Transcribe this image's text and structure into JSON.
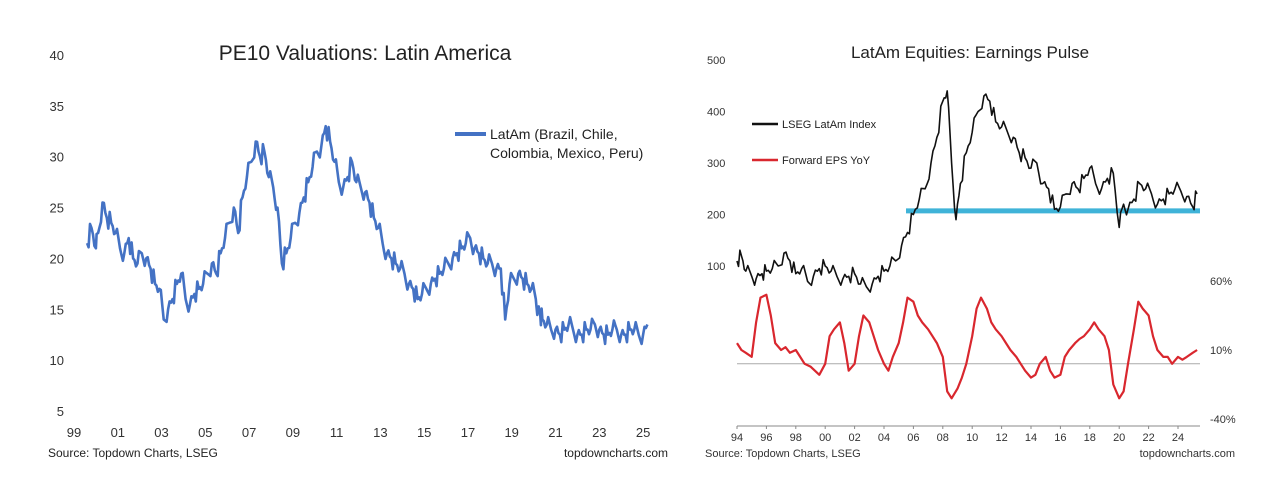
{
  "colors": {
    "blue": "#4472c4",
    "black": "#111111",
    "red": "#d9272e",
    "cyan": "#3fb3d8",
    "zero": "#aaaaaa"
  },
  "chart_data": [
    {
      "type": "line",
      "title": "PE10 Valuations: Latin America",
      "source": "Source: Topdown Charts, LSEG",
      "watermark": "topdowncharts.com",
      "ylim": [
        5,
        40
      ],
      "xlim": [
        1999,
        2025.5
      ],
      "y_ticks": [
        "5",
        "10",
        "15",
        "20",
        "25",
        "30",
        "35",
        "40"
      ],
      "x_ticks": [
        "99",
        "01",
        "03",
        "05",
        "07",
        "09",
        "11",
        "13",
        "15",
        "17",
        "19",
        "21",
        "23",
        "25"
      ],
      "legend_position": "top-right",
      "series": [
        {
          "name": "LatAm (Brazil, Chile, Colombia, Mexico, Peru)",
          "legend_lines": [
            "LatAm (Brazil, Chile,",
            "Colombia, Mexico, Peru)"
          ],
          "color": "#4472c4",
          "x": [
            1999.6,
            1999.8,
            2000.0,
            2000.1,
            2000.3,
            2000.5,
            2000.7,
            2000.9,
            2001.1,
            2001.3,
            2001.5,
            2001.7,
            2001.9,
            2002.1,
            2002.3,
            2002.5,
            2002.7,
            2002.9,
            2003.1,
            2003.3,
            2003.5,
            2003.7,
            2003.9,
            2004.1,
            2004.3,
            2004.5,
            2004.7,
            2004.9,
            2005.1,
            2005.3,
            2005.5,
            2005.7,
            2005.9,
            2006.1,
            2006.3,
            2006.5,
            2006.7,
            2006.9,
            2007.1,
            2007.3,
            2007.5,
            2007.7,
            2007.9,
            2008.1,
            2008.3,
            2008.5,
            2008.7,
            2008.9,
            2009.1,
            2009.3,
            2009.5,
            2009.7,
            2009.9,
            2010.1,
            2010.3,
            2010.5,
            2010.7,
            2010.9,
            2011.1,
            2011.3,
            2011.5,
            2011.7,
            2011.9,
            2012.1,
            2012.3,
            2012.5,
            2012.7,
            2012.9,
            2013.1,
            2013.3,
            2013.5,
            2013.7,
            2013.9,
            2014.1,
            2014.3,
            2014.5,
            2014.7,
            2014.9,
            2015.1,
            2015.3,
            2015.5,
            2015.7,
            2015.9,
            2016.1,
            2016.3,
            2016.5,
            2016.7,
            2016.9,
            2017.1,
            2017.3,
            2017.5,
            2017.7,
            2017.9,
            2018.1,
            2018.3,
            2018.5,
            2018.7,
            2018.9,
            2019.1,
            2019.3,
            2019.5,
            2019.7,
            2019.9,
            2020.1,
            2020.2,
            2020.3,
            2020.4,
            2020.6,
            2020.8,
            2021.0,
            2021.2,
            2021.4,
            2021.6,
            2021.8,
            2022.0,
            2022.2,
            2022.4,
            2022.6,
            2022.8,
            2023.0,
            2023.2,
            2023.4,
            2023.6,
            2023.8,
            2024.0,
            2024.2,
            2024.4,
            2024.6,
            2024.8,
            2025.0,
            2025.2
          ],
          "values": [
            21.5,
            23.0,
            21.0,
            22.5,
            25.5,
            24.0,
            23.5,
            22.5,
            21.0,
            20.5,
            22.0,
            20.0,
            19.5,
            20.5,
            20.0,
            19.0,
            17.5,
            17.0,
            14.0,
            15.0,
            16.0,
            17.5,
            18.5,
            16.0,
            15.5,
            16.5,
            17.0,
            17.5,
            18.5,
            19.5,
            18.5,
            20.5,
            22.0,
            23.5,
            25.0,
            22.5,
            26.0,
            28.0,
            29.5,
            31.5,
            30.0,
            30.5,
            28.0,
            27.0,
            25.0,
            19.5,
            20.5,
            22.0,
            23.5,
            24.5,
            26.0,
            27.5,
            29.0,
            30.5,
            31.0,
            33.0,
            31.5,
            29.5,
            27.5,
            27.0,
            28.0,
            29.5,
            27.5,
            27.0,
            26.5,
            25.5,
            24.0,
            23.0,
            21.5,
            20.5,
            20.0,
            19.5,
            19.0,
            18.5,
            17.5,
            17.0,
            16.0,
            16.5,
            17.0,
            17.5,
            18.0,
            18.5,
            19.0,
            19.5,
            20.0,
            20.5,
            21.0,
            21.5,
            22.0,
            21.0,
            20.5,
            20.0,
            19.5,
            19.5,
            19.0,
            19.0,
            14.0,
            17.5,
            18.0,
            18.5,
            18.0,
            17.5,
            17.0,
            16.0,
            15.0,
            14.5,
            14.0,
            13.5,
            13.0,
            13.0,
            12.5,
            13.0,
            13.5,
            13.0,
            12.5,
            12.5,
            13.0,
            13.0,
            13.5,
            13.0,
            12.5,
            12.5,
            13.0,
            13.0,
            12.5,
            12.5,
            13.0,
            13.0,
            12.5,
            12.5,
            13.5
          ]
        }
      ]
    },
    {
      "type": "line",
      "title": "LatAm Equities: Earnings Pulse",
      "source": "Source: Topdown Charts, LSEG",
      "watermark": "topdowncharts.com",
      "xlim": [
        1994,
        2025.5
      ],
      "x_ticks": [
        "94",
        "96",
        "98",
        "00",
        "02",
        "04",
        "06",
        "08",
        "10",
        "12",
        "14",
        "16",
        "18",
        "20",
        "22",
        "24"
      ],
      "y_left_ticks": [
        "100",
        "200",
        "300",
        "400",
        "500"
      ],
      "y_left_range": [
        0,
        500
      ],
      "y_right_ticks": [
        "60%",
        "10%",
        "-40%"
      ],
      "y_right_range": [
        -40,
        60
      ],
      "reference_line_left": 207,
      "series": [
        {
          "name": "LSEG LatAm Index",
          "axis": "left",
          "color": "#111111",
          "x": [
            1994.0,
            1994.3,
            1994.6,
            1995.0,
            1995.3,
            1995.7,
            1996.0,
            1996.4,
            1996.8,
            1997.2,
            1997.6,
            1998.0,
            1998.4,
            1998.8,
            1999.2,
            1999.6,
            2000.0,
            2000.4,
            2000.8,
            2001.2,
            2001.6,
            2002.0,
            2002.4,
            2002.8,
            2003.2,
            2003.6,
            2004.0,
            2004.4,
            2004.8,
            2005.2,
            2005.6,
            2006.0,
            2006.4,
            2006.8,
            2007.2,
            2007.6,
            2008.0,
            2008.3,
            2008.6,
            2008.9,
            2009.2,
            2009.6,
            2010.0,
            2010.4,
            2010.8,
            2011.2,
            2011.6,
            2012.0,
            2012.4,
            2012.8,
            2013.2,
            2013.6,
            2014.0,
            2014.4,
            2014.8,
            2015.2,
            2015.6,
            2016.0,
            2016.4,
            2016.8,
            2017.2,
            2017.6,
            2018.0,
            2018.4,
            2018.8,
            2019.2,
            2019.6,
            2020.0,
            2020.3,
            2020.6,
            2021.0,
            2021.4,
            2021.8,
            2022.2,
            2022.6,
            2023.0,
            2023.4,
            2023.8,
            2024.2,
            2024.6,
            2025.0,
            2025.3
          ],
          "values": [
            110,
            120,
            90,
            80,
            75,
            85,
            90,
            95,
            100,
            125,
            110,
            85,
            95,
            70,
            80,
            95,
            100,
            90,
            80,
            75,
            80,
            85,
            65,
            60,
            65,
            80,
            90,
            100,
            110,
            140,
            165,
            200,
            230,
            250,
            300,
            350,
            420,
            440,
            300,
            190,
            260,
            320,
            360,
            400,
            430,
            420,
            380,
            370,
            360,
            350,
            320,
            310,
            290,
            300,
            260,
            250,
            210,
            215,
            240,
            260,
            250,
            270,
            290,
            260,
            250,
            270,
            280,
            175,
            220,
            210,
            230,
            260,
            250,
            240,
            220,
            230,
            240,
            250,
            245,
            235,
            215,
            240
          ]
        },
        {
          "name": "Forward EPS YoY",
          "axis": "right",
          "color": "#d9272e",
          "x": [
            1994.0,
            1994.3,
            1994.6,
            1995.0,
            1995.3,
            1995.6,
            1996.0,
            1996.3,
            1996.6,
            1997.0,
            1997.3,
            1997.6,
            1998.0,
            1998.3,
            1998.6,
            1999.0,
            1999.3,
            1999.6,
            2000.0,
            2000.3,
            2000.6,
            2001.0,
            2001.3,
            2001.6,
            2002.0,
            2002.3,
            2002.6,
            2003.0,
            2003.3,
            2003.6,
            2004.0,
            2004.3,
            2004.6,
            2005.0,
            2005.3,
            2005.6,
            2006.0,
            2006.3,
            2006.6,
            2007.0,
            2007.3,
            2007.6,
            2008.0,
            2008.3,
            2008.6,
            2009.0,
            2009.3,
            2009.6,
            2010.0,
            2010.3,
            2010.6,
            2011.0,
            2011.3,
            2011.6,
            2012.0,
            2012.3,
            2012.6,
            2013.0,
            2013.3,
            2013.6,
            2014.0,
            2014.3,
            2014.6,
            2015.0,
            2015.3,
            2015.6,
            2016.0,
            2016.3,
            2016.6,
            2017.0,
            2017.3,
            2017.6,
            2018.0,
            2018.3,
            2018.6,
            2019.0,
            2019.3,
            2019.6,
            2020.0,
            2020.3,
            2020.6,
            2021.0,
            2021.3,
            2021.6,
            2022.0,
            2022.3,
            2022.6,
            2023.0,
            2023.3,
            2023.6,
            2024.0,
            2024.3,
            2024.6,
            2025.0,
            2025.3
          ],
          "values": [
            15,
            10,
            8,
            5,
            30,
            48,
            50,
            35,
            15,
            10,
            12,
            8,
            10,
            5,
            0,
            -2,
            -5,
            -8,
            0,
            20,
            25,
            30,
            15,
            -5,
            0,
            20,
            35,
            30,
            20,
            10,
            0,
            -5,
            5,
            15,
            30,
            48,
            45,
            35,
            30,
            25,
            20,
            15,
            5,
            -20,
            -25,
            -18,
            -10,
            0,
            20,
            40,
            48,
            40,
            30,
            25,
            20,
            15,
            10,
            5,
            0,
            -5,
            -10,
            -8,
            0,
            5,
            -5,
            -10,
            -8,
            5,
            10,
            15,
            18,
            20,
            25,
            30,
            25,
            20,
            10,
            -15,
            -25,
            -20,
            0,
            25,
            45,
            40,
            35,
            20,
            10,
            5,
            5,
            0,
            5,
            3,
            5,
            8,
            10
          ]
        }
      ],
      "legend": [
        "LSEG LatAm Index",
        "Forward EPS YoY"
      ],
      "legend_position": "top-left"
    }
  ]
}
